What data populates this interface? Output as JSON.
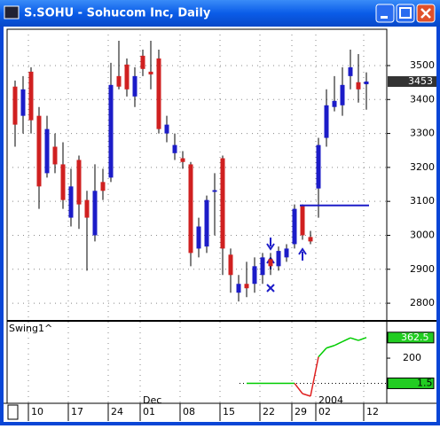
{
  "window": {
    "title": "S.SOHU - Sohucom Inc, Daily"
  },
  "chart_data": [
    {
      "type": "candlestick",
      "open": [
        3438,
        3352,
        3482,
        3352,
        3183,
        3261,
        3209,
        3052,
        3222,
        3104,
        3000,
        3157,
        3170,
        3469,
        3503,
        3409,
        3529,
        3482,
        3521,
        3300,
        3242,
        3227,
        3209,
        2961,
        2967,
        3128,
        3227,
        2943,
        2831,
        2857,
        2857,
        2883,
        2930,
        2909,
        2935,
        2974,
        3086,
        2995,
        3138,
        3287,
        3378,
        3383,
        3469,
        3451,
        3445
      ],
      "high": [
        3456,
        3469,
        3495,
        3378,
        3352,
        3300,
        3274,
        3196,
        3235,
        3131,
        3209,
        3196,
        3508,
        3573,
        3521,
        3495,
        3547,
        3573,
        3547,
        3352,
        3300,
        3248,
        3216,
        3052,
        3117,
        3183,
        3235,
        2961,
        2883,
        2922,
        2935,
        2948,
        2948,
        2967,
        2974,
        3091,
        3091,
        3013,
        3287,
        3430,
        3469,
        3495,
        3547,
        3534,
        3480
      ],
      "low": [
        3261,
        3300,
        3300,
        3078,
        3170,
        3183,
        3078,
        3026,
        3019,
        2896,
        2982,
        3104,
        3157,
        3430,
        3409,
        3378,
        3469,
        3430,
        3300,
        3274,
        3222,
        3196,
        2909,
        2935,
        2948,
        3000,
        2883,
        2831,
        2805,
        2818,
        2831,
        2857,
        2883,
        2896,
        2922,
        2961,
        2987,
        2974,
        3052,
        3261,
        3365,
        3352,
        3430,
        3391,
        3370
      ],
      "close": [
        3326,
        3430,
        3339,
        3144,
        3313,
        3209,
        3104,
        3144,
        3091,
        3052,
        3131,
        3131,
        3443,
        3438,
        3430,
        3469,
        3490,
        3474,
        3313,
        3326,
        3266,
        3216,
        2948,
        3026,
        3104,
        3133,
        2961,
        2883,
        2857,
        2844,
        2909,
        2935,
        2909,
        2954,
        2961,
        3078,
        3000,
        2982,
        3266,
        3383,
        3396,
        3443,
        3495,
        3430,
        3453
      ],
      "up_color": "#1c1cc8",
      "down_color": "#d02020",
      "ylim": [
        2748,
        3607
      ],
      "yticks": [
        2800,
        2900,
        3000,
        3100,
        3200,
        3300,
        3400,
        3500
      ],
      "grid": true,
      "level_line": 3088,
      "xticks": [
        {
          "value": 2,
          "label": "10"
        },
        {
          "value": 7,
          "label": "17"
        },
        {
          "value": 12,
          "label": "24"
        },
        {
          "value": 16,
          "label": "01"
        },
        {
          "value": 21,
          "label": "08"
        },
        {
          "value": 26,
          "label": "15"
        },
        {
          "value": 31,
          "label": "22"
        },
        {
          "value": 35,
          "label": "29"
        },
        {
          "value": 38,
          "label": "02"
        },
        {
          "value": 44,
          "label": "12"
        }
      ],
      "month_ticks": [
        {
          "value": 16,
          "label": "Dec"
        },
        {
          "value": 38,
          "label": "2004"
        }
      ]
    },
    {
      "type": "line",
      "title": "Swing1^",
      "values": [
        null,
        null,
        null,
        null,
        null,
        null,
        null,
        null,
        null,
        null,
        null,
        null,
        null,
        null,
        null,
        null,
        null,
        null,
        null,
        null,
        null,
        null,
        null,
        null,
        null,
        null,
        null,
        null,
        null,
        1.5,
        1.5,
        1.5,
        1.5,
        1.5,
        1.5,
        1.5,
        -80,
        -100,
        210,
        280,
        300,
        330,
        360,
        340,
        362.5
      ],
      "color": "#00cc00",
      "negative_color": "#e02020",
      "y2lim": [
        -156,
        480
      ],
      "y2ticks": [
        200
      ],
      "level": 1.5
    }
  ]
}
